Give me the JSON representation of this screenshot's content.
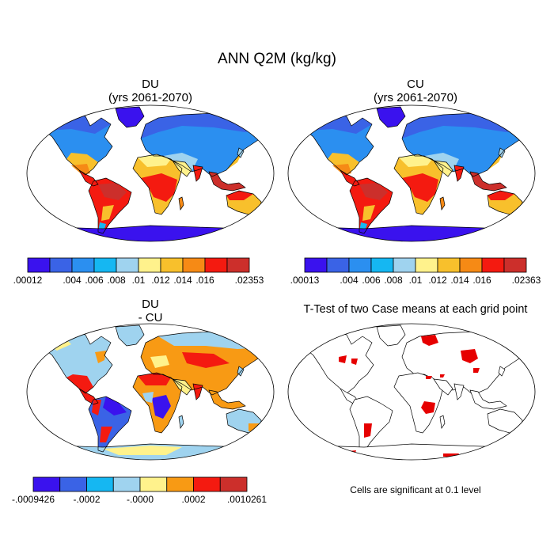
{
  "title": "ANN Q2M (kg/kg)",
  "panels": [
    {
      "line1": "DU",
      "line2": "(yrs 2061-2070)",
      "colorbar": {
        "colors": [
          "#3a12ee",
          "#3a63e6",
          "#2b8ff0",
          "#15b7f2",
          "#9fd3ef",
          "#fff28c",
          "#f8c02c",
          "#f68a15",
          "#f41a10",
          "#cc2f2b"
        ],
        "labels": [
          ".00012",
          ".004",
          ".006",
          ".008",
          ".01",
          ".012",
          ".014",
          ".016",
          ".02353"
        ],
        "label_boundaries": [
          0,
          2,
          3,
          4,
          5,
          6,
          7,
          8,
          10
        ]
      }
    },
    {
      "line1": "CU",
      "line2": "(yrs 2061-2070)",
      "colorbar": {
        "colors": [
          "#3a12ee",
          "#3a63e6",
          "#2b8ff0",
          "#15b7f2",
          "#9fd3ef",
          "#fff28c",
          "#f8c02c",
          "#f68a15",
          "#f41a10",
          "#cc2f2b"
        ],
        "labels": [
          ".00013",
          ".004",
          ".006",
          ".008",
          ".01",
          ".012",
          ".014",
          ".016",
          ".02363"
        ],
        "label_boundaries": [
          0,
          2,
          3,
          4,
          5,
          6,
          7,
          8,
          10
        ]
      }
    },
    {
      "line1": "DU",
      "line2": "- CU",
      "colorbar": {
        "colors": [
          "#3a12ee",
          "#3a63e6",
          "#15b7f2",
          "#9fd3ef",
          "#fff28c",
          "#f89a14",
          "#f41a10",
          "#cc2f2b"
        ],
        "labels": [
          "-.0009426",
          "-.0002",
          "-.0000",
          ".0002",
          ".0010261"
        ],
        "label_boundaries": [
          0,
          2,
          4,
          6,
          8
        ]
      }
    },
    {
      "title": "T-Test of two Case means at each grid point",
      "footnote": "Cells are significant at 0.1 level",
      "significance_color": "#e60000"
    }
  ]
}
